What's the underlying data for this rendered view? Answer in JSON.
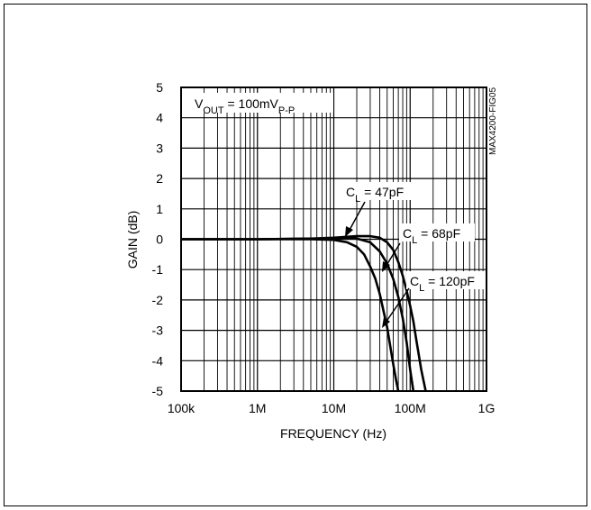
{
  "chart_data": {
    "type": "line",
    "title": "",
    "xlabel": "FREQUENCY (Hz)",
    "ylabel": "GAIN (dB)",
    "x_scale": "log",
    "xlim": [
      100000,
      1000000000
    ],
    "ylim": [
      -5,
      5
    ],
    "x_ticks": [
      {
        "value": 100000,
        "label": "100k"
      },
      {
        "value": 1000000,
        "label": "1M"
      },
      {
        "value": 10000000,
        "label": "10M"
      },
      {
        "value": 100000000,
        "label": "100M"
      },
      {
        "value": 1000000000,
        "label": "1G"
      }
    ],
    "y_ticks": [
      {
        "value": 5,
        "label": "5"
      },
      {
        "value": 4,
        "label": "4"
      },
      {
        "value": 3,
        "label": "3"
      },
      {
        "value": 2,
        "label": "2"
      },
      {
        "value": 1,
        "label": "1"
      },
      {
        "value": 0,
        "label": "0"
      },
      {
        "value": -1,
        "label": "-1"
      },
      {
        "value": -2,
        "label": "-2"
      },
      {
        "value": -3,
        "label": "-3"
      },
      {
        "value": -4,
        "label": "-4"
      },
      {
        "value": -5,
        "label": "-5"
      }
    ],
    "grid": true,
    "legend": "none",
    "annotations": {
      "condition": {
        "main": "V",
        "sub1": "OUT",
        "mid": " = 100mV",
        "sub2": "P-P"
      },
      "figure_id": "MAX4200-FIG05"
    },
    "series": [
      {
        "name": "47pF",
        "label": {
          "main": "C",
          "sub": "L",
          "rest": " = 47pF"
        },
        "x": [
          100000,
          1000000,
          5000000,
          10000000,
          20000000,
          30000000,
          40000000,
          50000000,
          60000000,
          70000000,
          80000000,
          90000000,
          100000000,
          110000000,
          120000000,
          140000000,
          160000000
        ],
        "y": [
          0,
          0,
          0.02,
          0.05,
          0.1,
          0.1,
          0.05,
          -0.1,
          -0.35,
          -0.75,
          -1.2,
          -1.7,
          -2.2,
          -2.7,
          -3.3,
          -4.3,
          -5
        ]
      },
      {
        "name": "68pF",
        "label": {
          "main": "C",
          "sub": "L",
          "rest": " = 68pF"
        },
        "x": [
          100000,
          1000000,
          5000000,
          10000000,
          20000000,
          30000000,
          40000000,
          50000000,
          60000000,
          70000000,
          80000000,
          90000000,
          100000000,
          110000000
        ],
        "y": [
          0,
          0,
          0.02,
          0.02,
          0.02,
          -0.1,
          -0.4,
          -0.8,
          -1.3,
          -1.9,
          -2.6,
          -3.4,
          -4.3,
          -5
        ]
      },
      {
        "name": "120pF",
        "label": {
          "main": "C",
          "sub": "L",
          "rest": " = 120pF"
        },
        "x": [
          100000,
          1000000,
          5000000,
          10000000,
          15000000,
          20000000,
          25000000,
          30000000,
          35000000,
          40000000,
          50000000,
          60000000,
          65000000,
          70000000
        ],
        "y": [
          0,
          0,
          0,
          -0.02,
          -0.1,
          -0.25,
          -0.5,
          -0.9,
          -1.3,
          -1.8,
          -2.9,
          -4.1,
          -4.6,
          -5
        ]
      }
    ]
  }
}
